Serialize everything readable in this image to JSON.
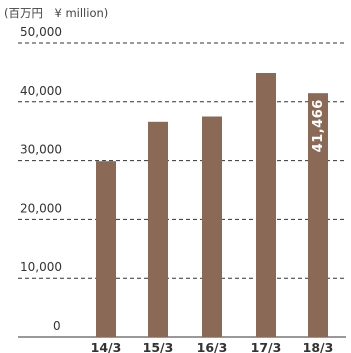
{
  "chart_data": {
    "type": "bar",
    "unit_label": "(百万円　¥ million)",
    "categories": [
      "14/3",
      "15/3",
      "16/3",
      "17/3",
      "18/3"
    ],
    "values": [
      29900,
      36600,
      37500,
      44900,
      41466
    ],
    "data_labels": [
      "",
      "",
      "",
      "",
      "41,466"
    ],
    "ylim": [
      0,
      50000
    ],
    "yticks": [
      0,
      10000,
      20000,
      30000,
      40000,
      50000
    ],
    "ytick_labels": [
      "0",
      "10,000",
      "20,000",
      "30,000",
      "40,000",
      "50,000"
    ],
    "grid": "dashed horizontal",
    "colors": {
      "bar": "#8a6a57",
      "grid": "#333333",
      "label": "#ffffff"
    }
  }
}
